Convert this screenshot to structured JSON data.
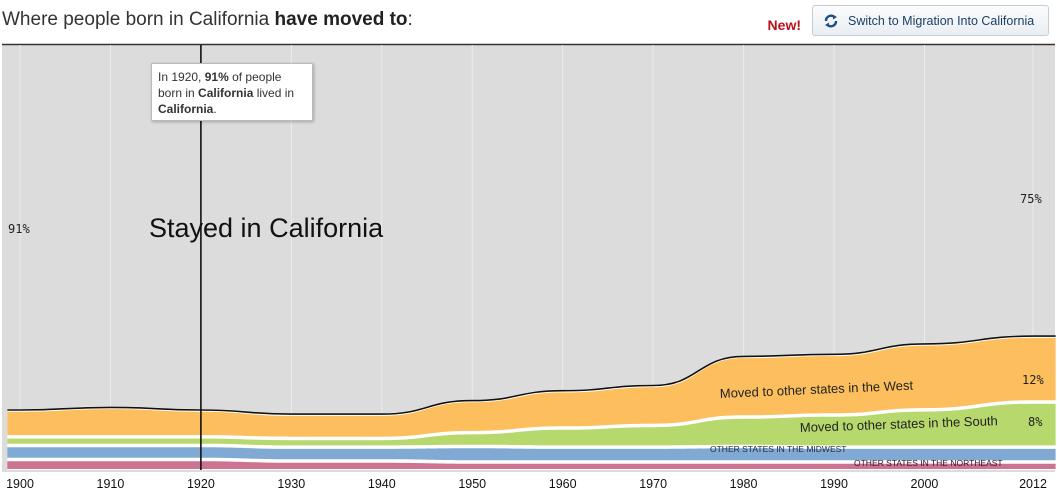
{
  "header": {
    "title_prefix": "Where people born in California ",
    "title_bold": "have moved to",
    "title_suffix": ":",
    "new_badge": "New!",
    "switch_button": {
      "label": "Switch to Migration Into California",
      "icon": "refresh-icon"
    }
  },
  "tooltip": {
    "part1": "In 1920, ",
    "pct": "91%",
    "part2": " of people born in ",
    "state1": "California",
    "part3": " lived in ",
    "state2": "California",
    "part4": "."
  },
  "chart_data": {
    "type": "area",
    "x": [
      1900,
      1910,
      1920,
      1930,
      1940,
      1950,
      1960,
      1970,
      1980,
      1990,
      2000,
      2012
    ],
    "xtick_labels": [
      "1900",
      "1910",
      "1920",
      "1930",
      "1940",
      "1950",
      "1960",
      "1970",
      "1980",
      "1990",
      "2000",
      "2012"
    ],
    "highlight_year": 1920,
    "main_label": "Stayed in California",
    "series": [
      {
        "name": "Stayed in California",
        "color": "#dcdcdc",
        "values": [
          91,
          90,
          91,
          92,
          92,
          89,
          87,
          86,
          80,
          80,
          77,
          75
        ]
      },
      {
        "name": "Moved to other states in the West",
        "color": "#fdbf5e",
        "values": [
          4.5,
          5,
          4.5,
          4,
          4,
          5.5,
          6.5,
          7,
          11,
          11,
          12,
          12
        ]
      },
      {
        "name": "Moved to other states in the South",
        "color": "#b7d86c",
        "values": [
          1,
          1,
          1,
          1,
          1,
          2,
          3,
          3.5,
          5,
          5.5,
          6.5,
          8
        ]
      },
      {
        "name": "OTHER STATES IN THE MIDWEST",
        "color": "#80a9d4",
        "values": [
          2,
          2,
          2,
          2,
          2,
          2.3,
          2.2,
          2.2,
          2.3,
          2.2,
          2.2,
          2.2
        ]
      },
      {
        "name": "OTHER STATES IN THE NORTHEAST",
        "color": "#cc7391",
        "values": [
          1.5,
          1.5,
          1.5,
          1.2,
          1.2,
          1,
          1,
          1,
          1,
          1,
          1,
          1
        ]
      }
    ],
    "edge_labels": {
      "start": {
        "text": "91%"
      },
      "end": [
        {
          "series": "Stayed in California",
          "text": "75%"
        },
        {
          "series": "Moved to other states in the West",
          "text": "12%"
        },
        {
          "series": "Moved to other states in the South",
          "text": "8%"
        }
      ]
    }
  }
}
